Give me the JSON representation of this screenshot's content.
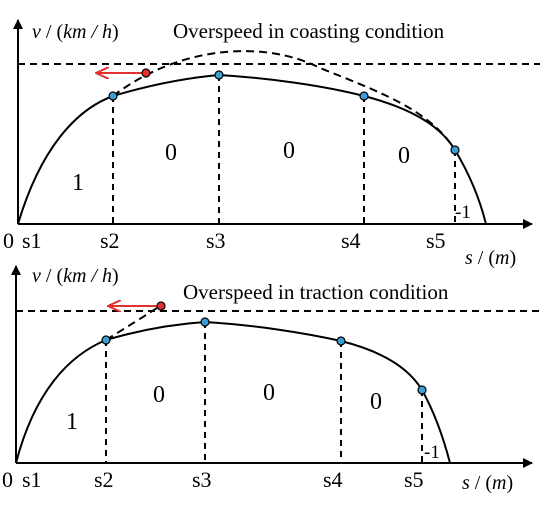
{
  "colors": {
    "curve": "#000000",
    "point_fill": "#3b9fd6",
    "overspeed_point": "#e03030",
    "arrow": "#e03030"
  },
  "panels": [
    {
      "title": "Overspeed in coasting condition",
      "y_axis_label": {
        "var": "v",
        "unit": "km / h"
      },
      "x_axis_label": {
        "var": "s",
        "unit": "m"
      },
      "origin_label": "0",
      "stations": [
        "s1",
        "s2",
        "s3",
        "s4",
        "s5"
      ],
      "region_labels": [
        "1",
        "0",
        "0",
        "0",
        "-1"
      ]
    },
    {
      "title": "Overspeed in traction condition",
      "y_axis_label": {
        "var": "v",
        "unit": "km / h"
      },
      "x_axis_label": {
        "var": "s",
        "unit": "m"
      },
      "origin_label": "0",
      "stations": [
        "s1",
        "s2",
        "s3",
        "s4",
        "s5"
      ],
      "region_labels": [
        "1",
        "0",
        "0",
        "0",
        "-1"
      ]
    }
  ]
}
